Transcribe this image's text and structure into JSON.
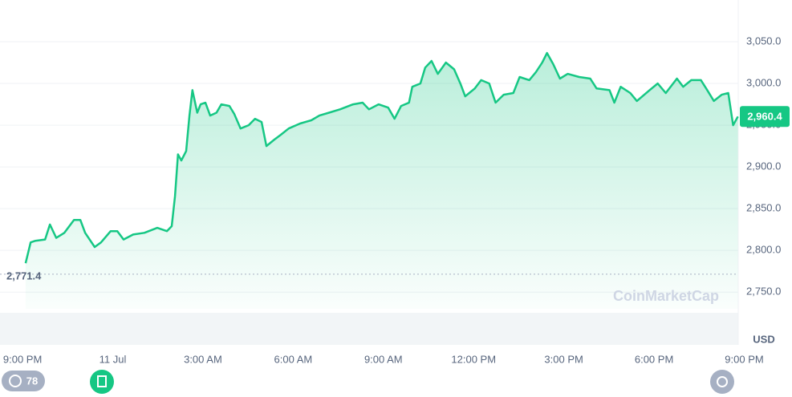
{
  "chart_data": {
    "type": "line",
    "color": "#16c784",
    "x": [
      0.1,
      0.27,
      0.43,
      0.75,
      0.91,
      1.12,
      1.39,
      1.71,
      1.92,
      2.08,
      2.4,
      2.61,
      2.93,
      3.15,
      3.36,
      3.68,
      4.05,
      4.48,
      4.8,
      4.96,
      5.07,
      5.17,
      5.28,
      5.44,
      5.55,
      5.65,
      5.81,
      5.92,
      6.08,
      6.24,
      6.45,
      6.61,
      6.88,
      7.04,
      7.25,
      7.52,
      7.73,
      7.95,
      8.11,
      8.37,
      8.59,
      8.85,
      9.23,
      9.6,
      9.87,
      10.19,
      10.56,
      10.99,
      11.31,
      11.52,
      11.84,
      12.16,
      12.37,
      12.59,
      12.85,
      12.96,
      13.23,
      13.39,
      13.6,
      13.81,
      14.08,
      14.35,
      14.56,
      14.72,
      15.04,
      15.25,
      15.52,
      15.73,
      16.0,
      16.32,
      16.53,
      16.85,
      17.07,
      17.28,
      17.44,
      17.65,
      17.87,
      18.13,
      18.51,
      18.88,
      19.09,
      19.52,
      19.68,
      19.89,
      20.21,
      20.43,
      20.85,
      21.12,
      21.39,
      21.76,
      21.97,
      22.24,
      22.56,
      22.77,
      22.99,
      23.25,
      23.47,
      23.63,
      23.79
    ],
    "values": [
      2784.6,
      2809.6,
      2811.5,
      2813,
      2831,
      2815,
      2821,
      2836.5,
      2836.5,
      2821,
      2804,
      2809.6,
      2823,
      2823,
      2813,
      2819,
      2821,
      2827,
      2823,
      2829,
      2865,
      2915,
      2907.7,
      2919,
      2961.5,
      2992,
      2965,
      2975,
      2977,
      2961.5,
      2965,
      2975,
      2973,
      2963.5,
      2946,
      2950,
      2957.7,
      2953.8,
      2925,
      2932.7,
      2938.5,
      2946,
      2952,
      2955.8,
      2961.5,
      2965,
      2969,
      2975,
      2977,
      2969,
      2975,
      2971,
      2957.7,
      2973,
      2977,
      2996,
      3000,
      3019,
      3027,
      3011.5,
      3025,
      3017,
      3000,
      2984.6,
      2994,
      3004,
      3000,
      2977,
      2986.5,
      2988.5,
      3007.7,
      3004,
      3013.5,
      3025,
      3036.5,
      3023,
      3005.8,
      3011.5,
      3007.7,
      3005.8,
      2994,
      2992,
      2977,
      2996,
      2988.5,
      2979,
      2992,
      3000,
      2988.5,
      3005.8,
      2996,
      3004,
      3004,
      2992,
      2979,
      2986.5,
      2988.5,
      2950,
      2960.4
    ],
    "xlim": [
      -0.75,
      23.8
    ],
    "ylim": [
      2730,
      3100
    ],
    "xticks": [
      {
        "value": 0,
        "label": "9:00 PM"
      },
      {
        "value": 3,
        "label": "11 Jul"
      },
      {
        "value": 6,
        "label": "3:00 AM"
      },
      {
        "value": 9,
        "label": "6:00 AM"
      },
      {
        "value": 12,
        "label": "9:00 AM"
      },
      {
        "value": 15,
        "label": "12:00 PM"
      },
      {
        "value": 18,
        "label": "3:00 PM"
      },
      {
        "value": 21,
        "label": "6:00 PM"
      },
      {
        "value": 24,
        "label": "9:00 PM"
      }
    ],
    "yticks": [
      {
        "value": 2750,
        "label": "2,750.0"
      },
      {
        "value": 2800,
        "label": "2,800.0"
      },
      {
        "value": 2850,
        "label": "2,850.0"
      },
      {
        "value": 2900,
        "label": "2,900.0"
      },
      {
        "value": 2950,
        "label": "2,950.0"
      },
      {
        "value": 3000,
        "label": "3,000.0"
      },
      {
        "value": 3050,
        "label": "3,050.0"
      }
    ],
    "grid": true,
    "reference_line": {
      "value": 2771.4,
      "label": "2,771.4"
    },
    "current_price": {
      "value": 2960.4,
      "label": "2,960.4"
    },
    "currency": "USD",
    "watermark": "CoinMarketCap",
    "badge_count": "78"
  }
}
